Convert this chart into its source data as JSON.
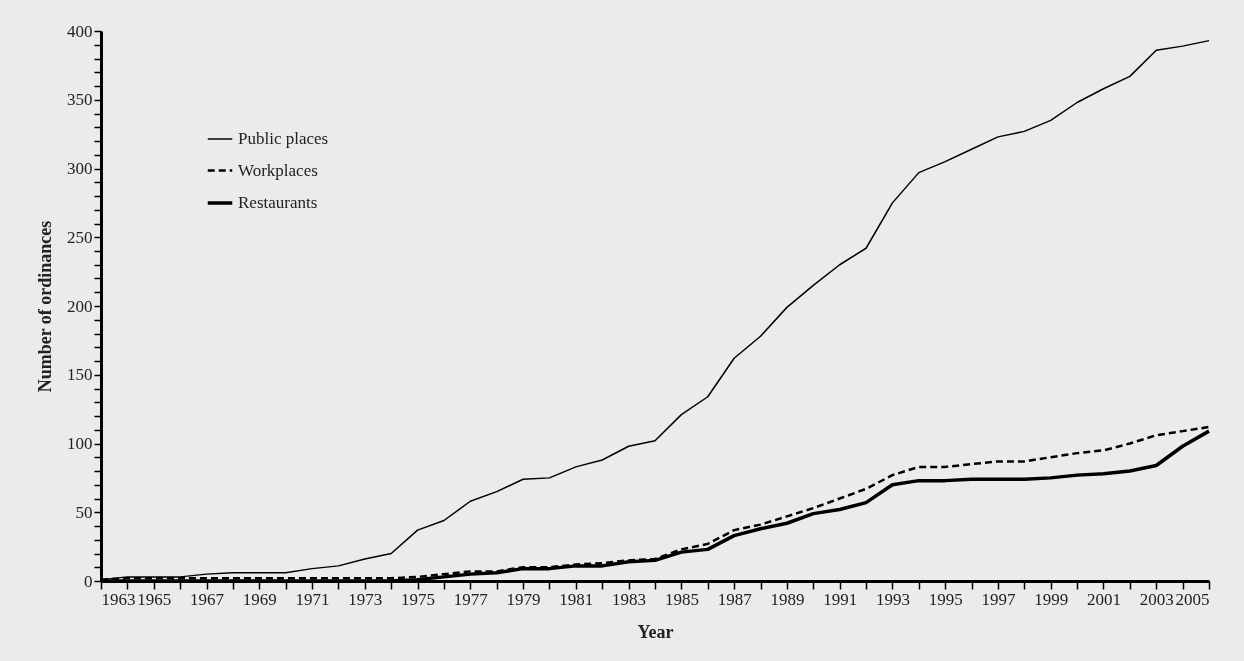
{
  "chart_data": {
    "type": "line",
    "xlabel": "Year",
    "ylabel": "Number of ordinances",
    "x": [
      1963,
      1964,
      1965,
      1966,
      1967,
      1968,
      1969,
      1970,
      1971,
      1972,
      1973,
      1974,
      1975,
      1976,
      1977,
      1978,
      1979,
      1980,
      1981,
      1982,
      1983,
      1984,
      1985,
      1986,
      1987,
      1988,
      1989,
      1990,
      1991,
      1992,
      1993,
      1994,
      1995,
      1996,
      1997,
      1998,
      1999,
      2000,
      2001,
      2002,
      2003,
      2004,
      2005
    ],
    "series": [
      {
        "name": "Public places",
        "color": "#000000",
        "line_style": "solid",
        "values": [
          1,
          3,
          3,
          3,
          5,
          6,
          6,
          6,
          9,
          11,
          16,
          20,
          37,
          44,
          58,
          65,
          74,
          75,
          83,
          88,
          98,
          102,
          121,
          134,
          162,
          178,
          199,
          215,
          230,
          242,
          275,
          297,
          305,
          314,
          323,
          327,
          335,
          348,
          358,
          367,
          386,
          389,
          393
        ]
      },
      {
        "name": "Workplaces",
        "color": "#000000",
        "line_style": "dashed",
        "values": [
          1,
          2,
          2,
          2,
          2,
          2,
          2,
          2,
          2,
          2,
          2,
          2,
          3,
          5,
          7,
          7,
          10,
          10,
          12,
          13,
          15,
          16,
          23,
          27,
          37,
          41,
          47,
          53,
          60,
          67,
          77,
          83,
          83,
          85,
          87,
          87,
          90,
          93,
          95,
          100,
          106,
          109,
          112
        ]
      },
      {
        "name": "Restaurants",
        "color": "#000000",
        "line_style": "solid",
        "values": [
          0,
          0,
          0,
          0,
          0,
          0,
          0,
          0,
          0,
          0,
          0,
          0,
          1,
          3,
          5,
          6,
          9,
          9,
          11,
          11,
          14,
          15,
          21,
          23,
          33,
          38,
          42,
          49,
          52,
          57,
          70,
          73,
          73,
          74,
          74,
          74,
          75,
          77,
          78,
          80,
          84,
          98,
          109
        ]
      }
    ],
    "xlim": [
      1963,
      2005
    ],
    "xticks": [
      1963,
      {
        "value": 1964,
        "label": null
      },
      1965,
      {
        "value": 1966,
        "label": null
      },
      1967,
      {
        "value": 1968,
        "label": null
      },
      1969,
      {
        "value": 1970,
        "label": null
      },
      1971,
      {
        "value": 1972,
        "label": null
      },
      1973,
      {
        "value": 1974,
        "label": null
      },
      1975,
      {
        "value": 1976,
        "label": null
      },
      1977,
      {
        "value": 1978,
        "label": null
      },
      1979,
      {
        "value": 1980,
        "label": null
      },
      1981,
      {
        "value": 1982,
        "label": null
      },
      1983,
      {
        "value": 1984,
        "label": null
      },
      1985,
      {
        "value": 1986,
        "label": null
      },
      1987,
      {
        "value": 1988,
        "label": null
      },
      1989,
      {
        "value": 1990,
        "label": null
      },
      1991,
      {
        "value": 1992,
        "label": null
      },
      1993,
      {
        "value": 1994,
        "label": null
      },
      1995,
      {
        "value": 1996,
        "label": null
      },
      1997,
      {
        "value": 1998,
        "label": null
      },
      1999,
      {
        "value": 2000,
        "label": null
      },
      2001,
      {
        "value": 2002,
        "label": null
      },
      2003,
      {
        "value": 2004,
        "label": null
      },
      2005
    ],
    "ylim": [
      0,
      400
    ],
    "yticks": [
      0,
      {
        "value": 10,
        "label": null
      },
      {
        "value": 20,
        "label": null
      },
      {
        "value": 30,
        "label": null
      },
      {
        "value": 40,
        "label": null
      },
      50,
      {
        "value": 60,
        "label": null
      },
      {
        "value": 70,
        "label": null
      },
      {
        "value": 80,
        "label": null
      },
      {
        "value": 90,
        "label": null
      },
      100,
      {
        "value": 110,
        "label": null
      },
      {
        "value": 120,
        "label": null
      },
      {
        "value": 130,
        "label": null
      },
      {
        "value": 140,
        "label": null
      },
      150,
      {
        "value": 160,
        "label": null
      },
      {
        "value": 170,
        "label": null
      },
      {
        "value": 180,
        "label": null
      },
      {
        "value": 190,
        "label": null
      },
      200,
      {
        "value": 210,
        "label": null
      },
      {
        "value": 220,
        "label": null
      },
      {
        "value": 230,
        "label": null
      },
      {
        "value": 240,
        "label": null
      },
      250,
      {
        "value": 260,
        "label": null
      },
      {
        "value": 270,
        "label": null
      },
      {
        "value": 280,
        "label": null
      },
      {
        "value": 290,
        "label": null
      },
      300,
      {
        "value": 310,
        "label": null
      },
      {
        "value": 320,
        "label": null
      },
      {
        "value": 330,
        "label": null
      },
      {
        "value": 340,
        "label": null
      },
      350,
      {
        "value": 360,
        "label": null
      },
      {
        "value": 370,
        "label": null
      },
      {
        "value": 380,
        "label": null
      },
      {
        "value": 390,
        "label": null
      },
      400
    ],
    "grid": false,
    "legend": "top left",
    "marker": "none"
  }
}
